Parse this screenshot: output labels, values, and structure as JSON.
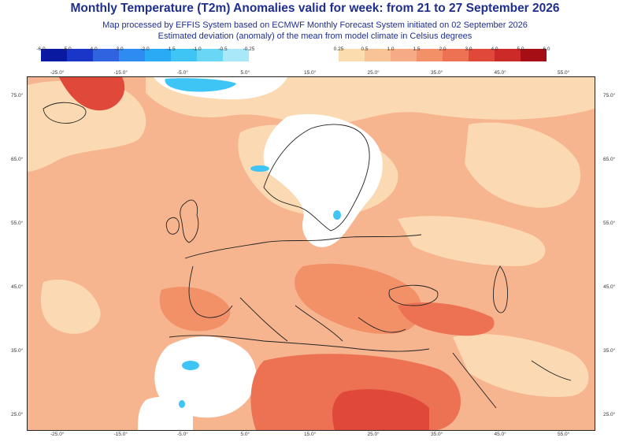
{
  "header": {
    "title": "Monthly Temperature (T2m) Anomalies valid for week: from 21 to 27 September 2026",
    "subtitle_1": "Map processed by EFFIS System based on ECMWF Monthly Forecast System initiated on 02 September 2026",
    "subtitle_2": "Estimated deviation (anomaly) of the mean from model climate in Celsius degrees"
  },
  "legend": {
    "negative": {
      "labels": [
        "-6.0",
        "-5.0",
        "-4.0",
        "-3.0",
        "-2.0",
        "-1.5",
        "-1.0",
        "-0.5",
        "-0.25"
      ],
      "colors": [
        "#0a1aa0",
        "#1a36c8",
        "#2f63e0",
        "#2e8cf0",
        "#2aaaf5",
        "#3ec4f5",
        "#6ad6f5",
        "#a8e8f8"
      ]
    },
    "positive": {
      "labels": [
        "0.25",
        "0.5",
        "1.0",
        "1.5",
        "2.0",
        "3.0",
        "4.0",
        "5.0",
        "6.0"
      ],
      "colors": [
        "#fbdcae",
        "#f8c495",
        "#f6ab84",
        "#f29068",
        "#ec7253",
        "#e0483a",
        "#cc2a28",
        "#a50e14"
      ]
    }
  },
  "map": {
    "lon_ticks": [
      "-25.0°",
      "-15.0°",
      "-5.0°",
      "5.0°",
      "15.0°",
      "25.0°",
      "35.0°",
      "45.0°",
      "55.0°"
    ],
    "lat_ticks": [
      "75.0°",
      "65.0°",
      "55.0°",
      "45.0°",
      "35.0°",
      "25.0°"
    ],
    "colors": {
      "base": "#f6b48f",
      "light": "#fbd9b2",
      "white": "#ffffff",
      "warm": "#f29068",
      "warmer": "#ec7253",
      "hot": "#e0483a",
      "cold": "#3ec4f5",
      "coast": "#222222"
    }
  }
}
